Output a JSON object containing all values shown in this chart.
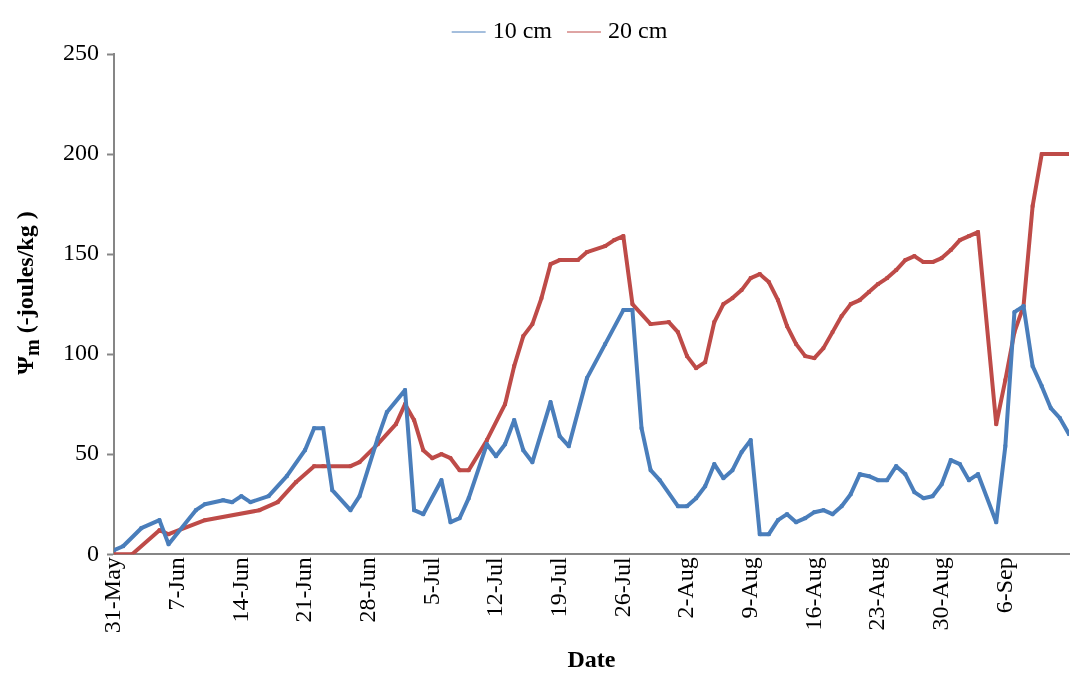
{
  "chart_data": {
    "type": "line",
    "xlabel": "Date",
    "ylabel": "Ψ$_{m}$ (-joules/kg )",
    "xlim": [
      "--05-31",
      "--09-13"
    ],
    "ylim": [
      0,
      250
    ],
    "yticks": [
      0,
      50,
      100,
      150,
      200,
      250
    ],
    "xticks": [
      {
        "value": "--05-31",
        "label": "31-May"
      },
      {
        "value": "--06-07",
        "label": "7-Jun"
      },
      {
        "value": "--06-14",
        "label": "14-Jun"
      },
      {
        "value": "--06-21",
        "label": "21-Jun"
      },
      {
        "value": "--06-28",
        "label": "28-Jun"
      },
      {
        "value": "--07-05",
        "label": "5-Jul"
      },
      {
        "value": "--07-12",
        "label": "12-Jul"
      },
      {
        "value": "--07-19",
        "label": "19-Jul"
      },
      {
        "value": "--07-26",
        "label": "26-Jul"
      },
      {
        "value": "--08-02",
        "label": "2-Aug"
      },
      {
        "value": "--08-09",
        "label": "9-Aug"
      },
      {
        "value": "--08-16",
        "label": "16-Aug"
      },
      {
        "value": "--08-23",
        "label": "23-Aug"
      },
      {
        "value": "--08-30",
        "label": "30-Aug"
      },
      {
        "value": "--09-06",
        "label": "6-Sep"
      }
    ],
    "grid": false,
    "legend": "top",
    "marker": "square",
    "line_style": "solid",
    "series": [
      {
        "name": "10 cm",
        "color": "#4a7ebb",
        "x": [
          "--05-31",
          "--06-01",
          "--06-03",
          "--06-05",
          "--06-06",
          "--06-09",
          "--06-10",
          "--06-12",
          "--06-13",
          "--06-14",
          "--06-15",
          "--06-17",
          "--06-19",
          "--06-21",
          "--06-22",
          "--06-23",
          "--06-24",
          "--06-26",
          "--06-27",
          "--06-29",
          "--06-30",
          "--07-02",
          "--07-03",
          "--07-04",
          "--07-06",
          "--07-07",
          "--07-08",
          "--07-09",
          "--07-11",
          "--07-12",
          "--07-13",
          "--07-14",
          "--07-15",
          "--07-16",
          "--07-18",
          "--07-19",
          "--07-20",
          "--07-22",
          "--07-24",
          "--07-26",
          "--07-27",
          "--07-28",
          "--07-29",
          "--07-30",
          "--08-01",
          "--08-02",
          "--08-03",
          "--08-04",
          "--08-05",
          "--08-06",
          "--08-07",
          "--08-08",
          "--08-09",
          "--08-10",
          "--08-11",
          "--08-12",
          "--08-13",
          "--08-14",
          "--08-15",
          "--08-16",
          "--08-17",
          "--08-18",
          "--08-19",
          "--08-20",
          "--08-21",
          "--08-22",
          "--08-23",
          "--08-24",
          "--08-25",
          "--08-26",
          "--08-27",
          "--08-28",
          "--08-29",
          "--08-30",
          "--08-31",
          "--09-01",
          "--09-02",
          "--09-03",
          "--09-05",
          "--09-06",
          "--09-07",
          "--09-08",
          "--09-09",
          "--09-10",
          "--09-11",
          "--09-12",
          "--09-13"
        ],
        "values": [
          2,
          4,
          13,
          17,
          5,
          22,
          25,
          27,
          26,
          29,
          26,
          29,
          39,
          52,
          63,
          63,
          32,
          22,
          29,
          58,
          71,
          82,
          22,
          20,
          37,
          16,
          18,
          28,
          55,
          49,
          55,
          67,
          52,
          46,
          76,
          59,
          54,
          88,
          105,
          122,
          122,
          63,
          42,
          37,
          24,
          24,
          28,
          34,
          45,
          38,
          42,
          51,
          57,
          10,
          10,
          17,
          20,
          16,
          18,
          21,
          22,
          20,
          24,
          30,
          40,
          39,
          37,
          37,
          44,
          40,
          31,
          28,
          29,
          35,
          47,
          45,
          37,
          40,
          16,
          54,
          121,
          124,
          94,
          84,
          73,
          68,
          60
        ]
      },
      {
        "name": "20 cm",
        "color": "#be4b48",
        "x": [
          "--05-31",
          "--06-02",
          "--06-05",
          "--06-06",
          "--06-10",
          "--06-16",
          "--06-18",
          "--06-20",
          "--06-22",
          "--06-23",
          "--06-26",
          "--06-27",
          "--06-29",
          "--07-01",
          "--07-02",
          "--07-03",
          "--07-04",
          "--07-05",
          "--07-06",
          "--07-07",
          "--07-08",
          "--07-09",
          "--07-11",
          "--07-13",
          "--07-14",
          "--07-15",
          "--07-16",
          "--07-17",
          "--07-18",
          "--07-19",
          "--07-21",
          "--07-22",
          "--07-24",
          "--07-25",
          "--07-26",
          "--07-27",
          "--07-29",
          "--07-31",
          "--08-01",
          "--08-02",
          "--08-03",
          "--08-04",
          "--08-05",
          "--08-06",
          "--08-07",
          "--08-08",
          "--08-09",
          "--08-10",
          "--08-11",
          "--08-12",
          "--08-13",
          "--08-14",
          "--08-15",
          "--08-16",
          "--08-17",
          "--08-18",
          "--08-19",
          "--08-20",
          "--08-21",
          "--08-22",
          "--08-23",
          "--08-24",
          "--08-25",
          "--08-26",
          "--08-27",
          "--08-28",
          "--08-29",
          "--08-30",
          "--08-31",
          "--09-01",
          "--09-02",
          "--09-03",
          "--09-05",
          "--09-06",
          "--09-07",
          "--09-08",
          "--09-09",
          "--09-10",
          "--09-13"
        ],
        "values": [
          0,
          0,
          12,
          10,
          17,
          22,
          26,
          36,
          44,
          44,
          44,
          46,
          55,
          65,
          75,
          67,
          52,
          48,
          50,
          48,
          42,
          42,
          57,
          75,
          94,
          109,
          115,
          128,
          145,
          147,
          147,
          151,
          154,
          157,
          159,
          125,
          115,
          116,
          111,
          99,
          93,
          96,
          116,
          125,
          128,
          132,
          138,
          140,
          136,
          127,
          114,
          105,
          99,
          98,
          103,
          111,
          119,
          125,
          127,
          131,
          135,
          138,
          142,
          147,
          149,
          146,
          146,
          148,
          152,
          157,
          159,
          161,
          65,
          87,
          111,
          124,
          174,
          200,
          200
        ]
      }
    ]
  }
}
